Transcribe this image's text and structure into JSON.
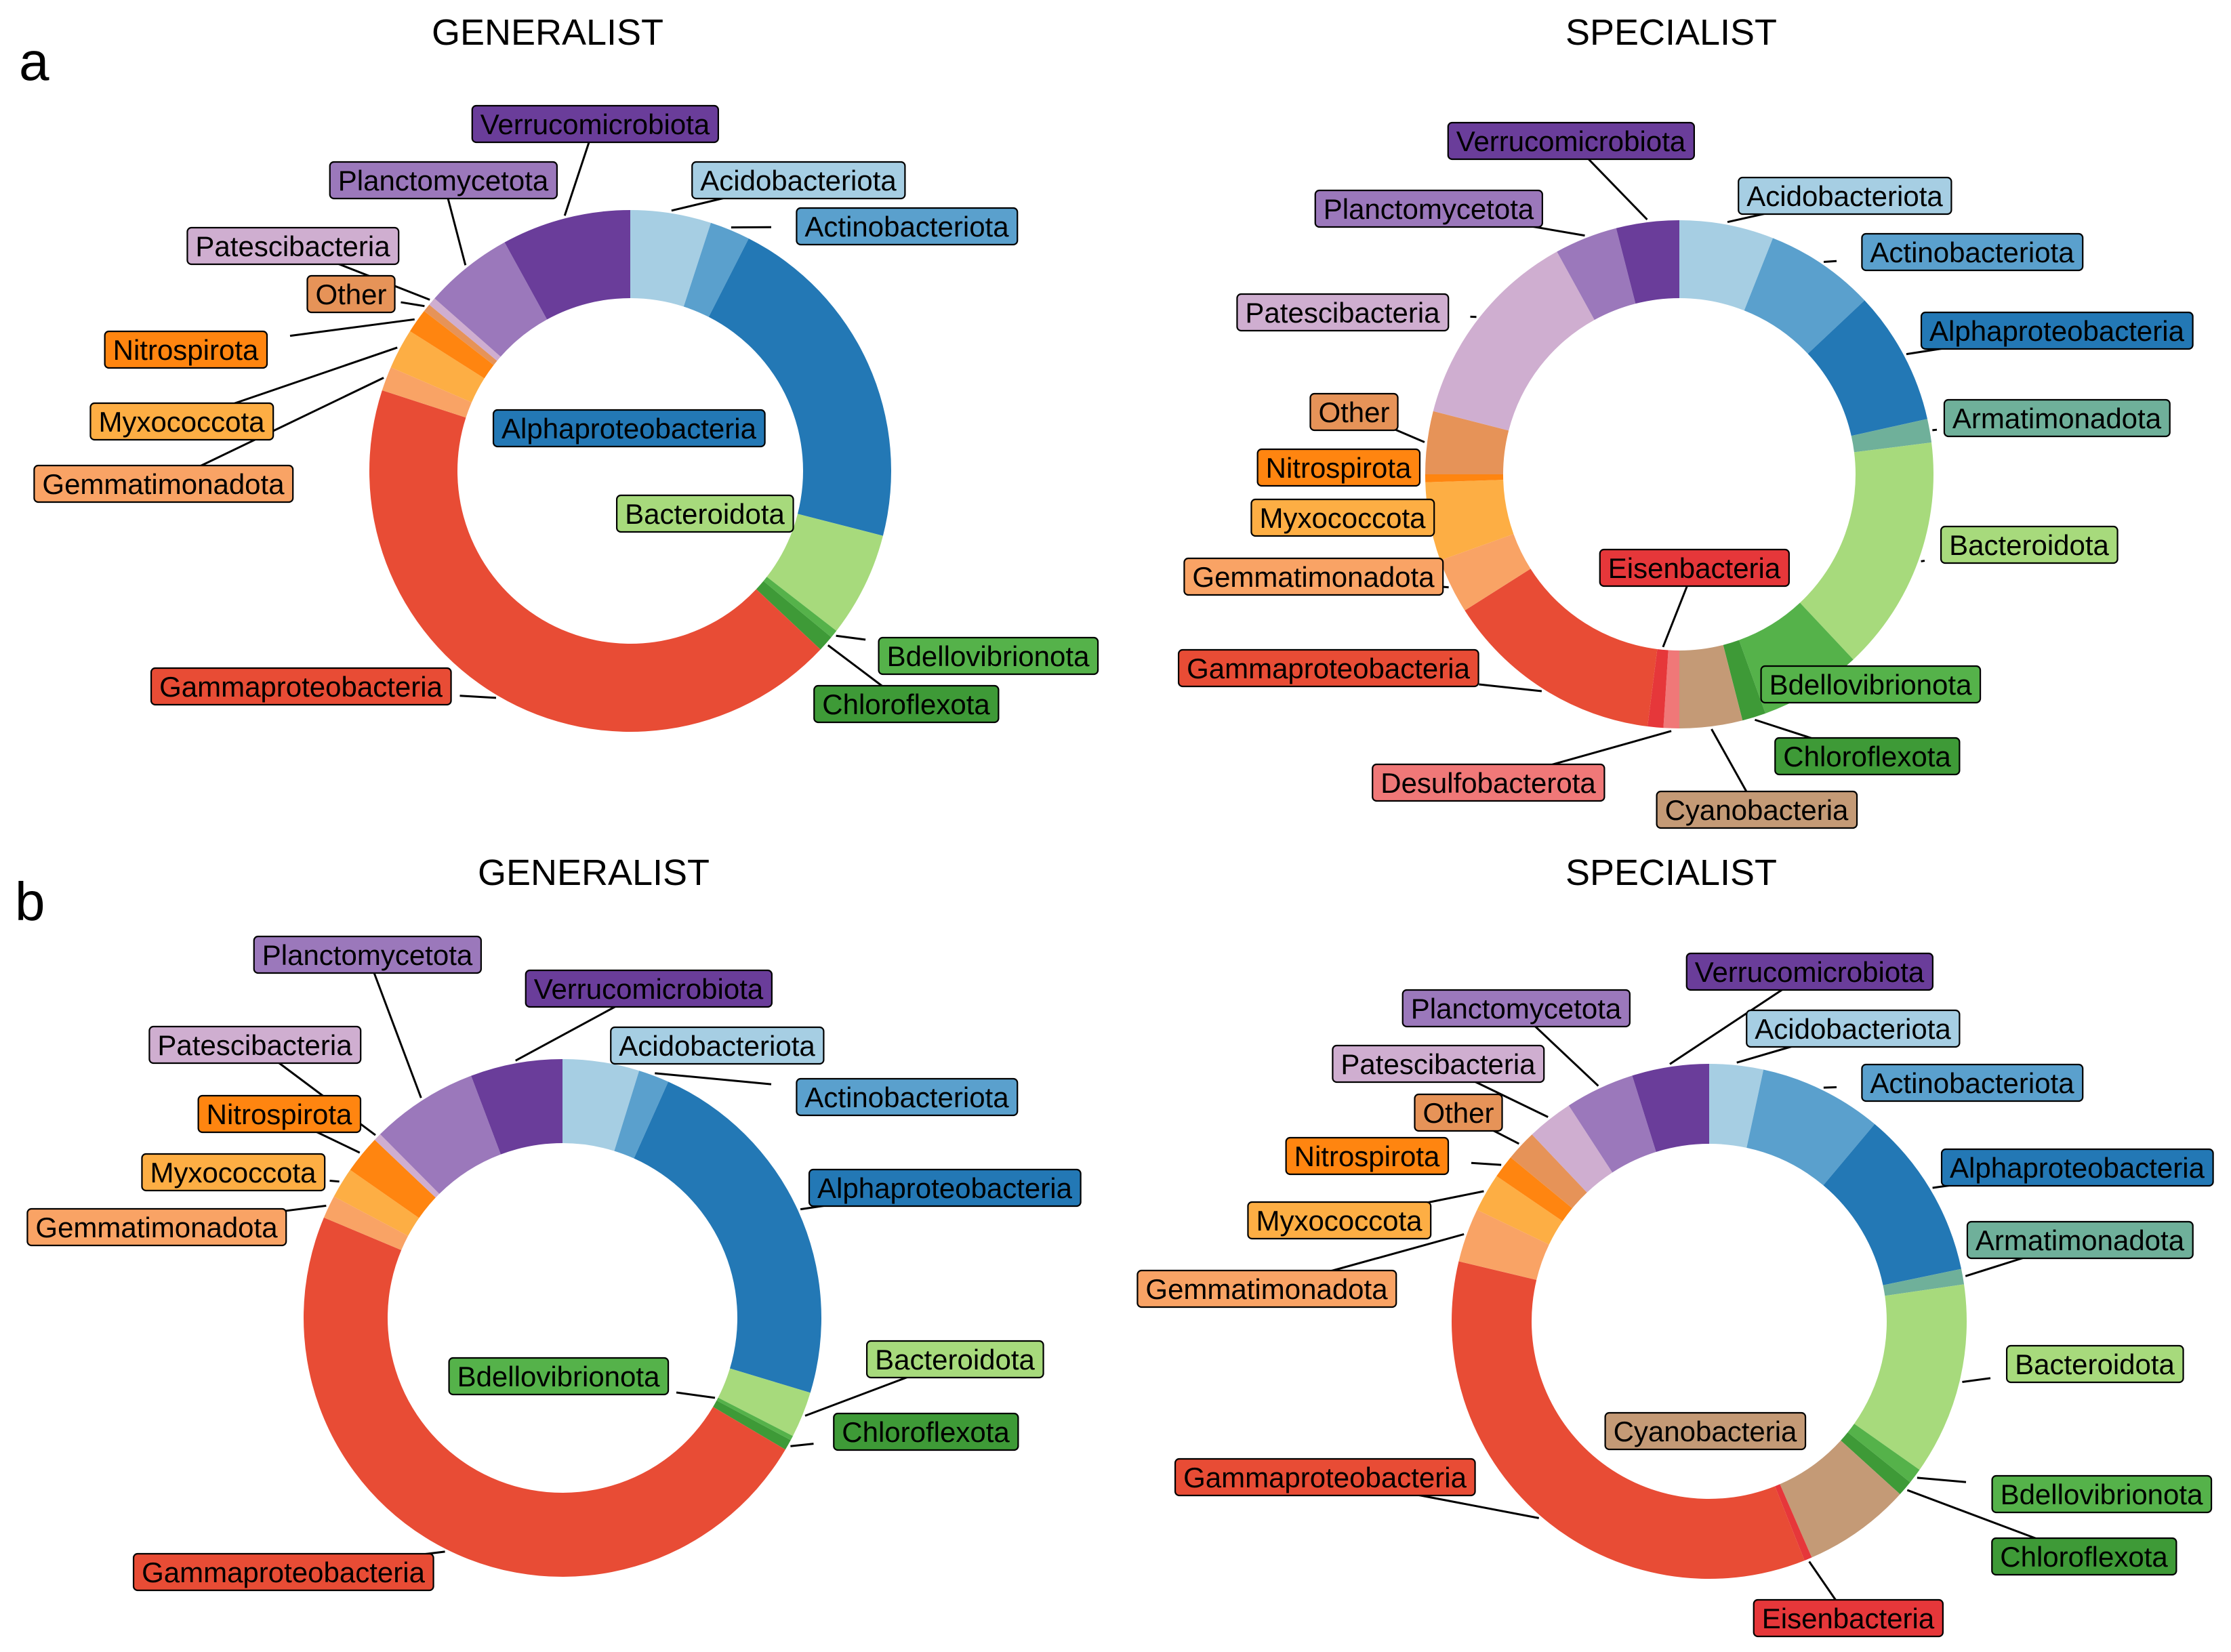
{
  "colors": {
    "Acidobacteriota": "#a6cee3",
    "Actinobacteriota": "#5aa0cd",
    "Alphaproteobacteria": "#2378b5",
    "Armatimonadota": "#6fb09a",
    "Bacteroidota": "#a7da7c",
    "Bdellovibrionota": "#55b24a",
    "Chloroflexota": "#3e9a37",
    "Cyanobacteria": "#c49a76",
    "Desulfobacterota": "#f07878",
    "Eisenbacteria": "#e6373a",
    "Gammaproteobacteria": "#e84c35",
    "Gemmatimonadota": "#f9a365",
    "Myxococcota": "#fdae44",
    "Nitrospirota": "#ff8510",
    "Other": "#e69358",
    "Patescibacteria": "#cfaed0",
    "Planctomycetota": "#9b78bb",
    "Verrucomicrobiota": "#6a3d9a"
  },
  "chart_data": [
    {
      "type": "pie",
      "panel": "a",
      "title": "GENERALIST",
      "categories": [
        "Acidobacteriota",
        "Actinobacteriota",
        "Alphaproteobacteria",
        "Bacteroidota",
        "Bdellovibrionota",
        "Chloroflexota",
        "Gammaproteobacteria",
        "Gemmatimonadota",
        "Myxococcota",
        "Nitrospirota",
        "Other",
        "Patescibacteria",
        "Planctomycetota",
        "Verrucomicrobiota"
      ],
      "values": [
        5.0,
        2.5,
        21.5,
        6.5,
        0.5,
        1.0,
        43.0,
        1.5,
        2.5,
        1.5,
        0.5,
        0.5,
        5.5,
        8.0
      ]
    },
    {
      "type": "pie",
      "panel": "a",
      "title": "SPECIALIST",
      "categories": [
        "Acidobacteriota",
        "Actinobacteriota",
        "Alphaproteobacteria",
        "Armatimonadota",
        "Bacteroidota",
        "Bdellovibrionota",
        "Chloroflexota",
        "Cyanobacteria",
        "Desulfobacterota",
        "Eisenbacteria",
        "Gammaproteobacteria",
        "Gemmatimonadota",
        "Myxococcota",
        "Nitrospirota",
        "Other",
        "Patescibacteria",
        "Planctomycetota",
        "Verrucomicrobiota"
      ],
      "values": [
        6.0,
        7.0,
        8.5,
        1.5,
        15.0,
        6.5,
        1.5,
        4.0,
        1.0,
        1.0,
        14.0,
        3.5,
        5.0,
        0.5,
        4.0,
        13.0,
        4.0,
        4.0
      ]
    },
    {
      "type": "pie",
      "panel": "b",
      "title": "GENERALIST",
      "categories": [
        "Acidobacteriota",
        "Actinobacteriota",
        "Alphaproteobacteria",
        "Bacteroidota",
        "Bdellovibrionota",
        "Chloroflexota",
        "Gammaproteobacteria",
        "Gemmatimonadota",
        "Myxococcota",
        "Nitrospirota",
        "Patescibacteria",
        "Planctomycetota",
        "Verrucomicrobiota"
      ],
      "values": [
        5.0,
        2.0,
        24.0,
        3.0,
        0.3,
        0.7,
        50.0,
        1.5,
        2.0,
        2.5,
        0.5,
        7.0,
        6.0
      ]
    },
    {
      "type": "pie",
      "panel": "b",
      "title": "SPECIALIST",
      "categories": [
        "Acidobacteriota",
        "Actinobacteriota",
        "Alphaproteobacteria",
        "Armatimonadota",
        "Bacteroidota",
        "Bdellovibrionota",
        "Chloroflexota",
        "Cyanobacteria",
        "Eisenbacteria",
        "Gammaproteobacteria",
        "Gemmatimonadota",
        "Myxococcota",
        "Nitrospirota",
        "Other",
        "Patescibacteria",
        "Planctomycetota",
        "Verrucomicrobiota"
      ],
      "values": [
        3.5,
        8.0,
        11.0,
        1.0,
        12.5,
        1.0,
        1.0,
        7.0,
        0.5,
        36.0,
        3.5,
        2.5,
        1.5,
        2.0,
        3.0,
        4.5,
        5.0
      ]
    }
  ]
}
